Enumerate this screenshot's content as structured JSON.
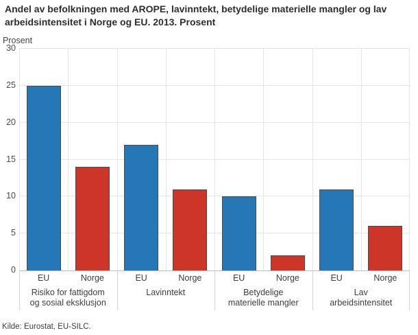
{
  "title": "Andel av befolkningen med AROPE, lavinntekt, betydelige materielle mangler og lav arbeidsintensitet i Norge og EU. 2013. Prosent",
  "source": "Kilde: Eurostat, EU-SILC.",
  "chart_data": {
    "type": "bar",
    "title": "Andel av befolkningen med AROPE, lavinntekt, betydelige materielle mangler og lav arbeidsintensitet i Norge og EU. 2013. Prosent",
    "xlabel": "",
    "ylabel": "Prosent",
    "ylim": [
      0,
      30
    ],
    "ytick_step": 5,
    "grid": true,
    "legend_position": "none",
    "categories": [
      {
        "label": "Risiko for fattigdom og sosial eksklusjon",
        "lines": [
          "Risiko for fattigdom",
          "og sosial eksklusjon"
        ]
      },
      {
        "label": "Lavinntekt",
        "lines": [
          "Lavinntekt"
        ]
      },
      {
        "label": "Betydelige materielle mangler",
        "lines": [
          "Betydelige",
          "materielle mangler"
        ]
      },
      {
        "label": "Lav arbeidsintensitet",
        "lines": [
          "Lav",
          "arbeidsintensitet"
        ]
      }
    ],
    "series": [
      {
        "name": "EU",
        "color": "#2578b5",
        "values": [
          25,
          17,
          10,
          11
        ]
      },
      {
        "name": "Norge",
        "color": "#cc3528",
        "values": [
          14,
          11,
          2,
          6
        ]
      }
    ]
  }
}
